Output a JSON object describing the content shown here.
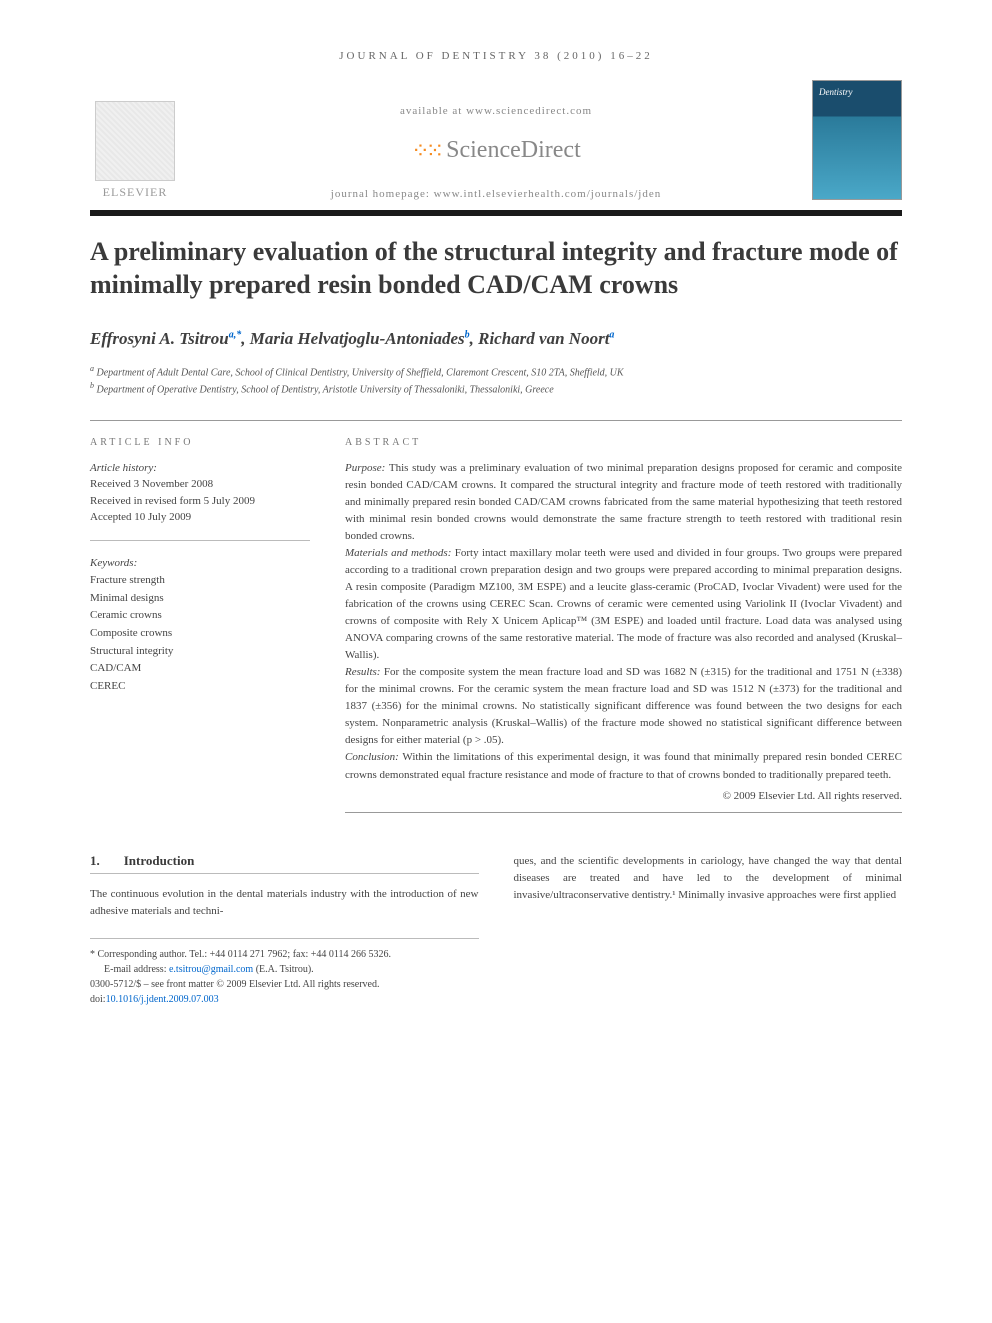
{
  "journal_header": "JOURNAL OF DENTISTRY 38 (2010) 16–22",
  "banner": {
    "available_at": "available at www.sciencedirect.com",
    "sciencedirect": "ScienceDirect",
    "homepage": "journal homepage: www.intl.elsevierhealth.com/journals/jden",
    "elsevier": "ELSEVIER",
    "cover_title": "Dentistry"
  },
  "title": "A preliminary evaluation of the structural integrity and fracture mode of minimally prepared resin bonded CAD/CAM crowns",
  "authors": {
    "a1": "Effrosyni A. Tsitrou",
    "a1_sup": "a,*",
    "a2": "Maria Helvatjoglu-Antoniades",
    "a2_sup": "b",
    "a3": "Richard van Noort",
    "a3_sup": "a"
  },
  "affiliations": {
    "a": "Department of Adult Dental Care, School of Clinical Dentistry, University of Sheffield, Claremont Crescent, S10 2TA, Sheffield, UK",
    "b": "Department of Operative Dentistry, School of Dentistry, Aristotle University of Thessaloniki, Thessaloniki, Greece"
  },
  "article_info": {
    "label": "ARTICLE INFO",
    "history_label": "Article history:",
    "received": "Received 3 November 2008",
    "revised": "Received in revised form 5 July 2009",
    "accepted": "Accepted 10 July 2009",
    "keywords_label": "Keywords:",
    "keywords": [
      "Fracture strength",
      "Minimal designs",
      "Ceramic crowns",
      "Composite crowns",
      "Structural integrity",
      "CAD/CAM",
      "CEREC"
    ]
  },
  "abstract": {
    "label": "ABSTRACT",
    "purpose_label": "Purpose:",
    "purpose": "This study was a preliminary evaluation of two minimal preparation designs proposed for ceramic and composite resin bonded CAD/CAM crowns. It compared the structural integrity and fracture mode of teeth restored with traditionally and minimally prepared resin bonded CAD/CAM crowns fabricated from the same material hypothesizing that teeth restored with minimal resin bonded crowns would demonstrate the same fracture strength to teeth restored with traditional resin bonded crowns.",
    "methods_label": "Materials and methods:",
    "methods": "Forty intact maxillary molar teeth were used and divided in four groups. Two groups were prepared according to a traditional crown preparation design and two groups were prepared according to minimal preparation designs. A resin composite (Paradigm MZ100, 3M ESPE) and a leucite glass-ceramic (ProCAD, Ivoclar Vivadent) were used for the fabrication of the crowns using CEREC Scan. Crowns of ceramic were cemented using Variolink II (Ivoclar Vivadent) and crowns of composite with Rely X Unicem Aplicap™ (3M ESPE) and loaded until fracture. Load data was analysed using ANOVA comparing crowns of the same restorative material. The mode of fracture was also recorded and analysed (Kruskal–Wallis).",
    "results_label": "Results:",
    "results": "For the composite system the mean fracture load and SD was 1682 N (±315) for the traditional and 1751 N (±338) for the minimal crowns. For the ceramic system the mean fracture load and SD was 1512 N (±373) for the traditional and 1837 (±356) for the minimal crowns. No statistically significant difference was found between the two designs for each system. Nonparametric analysis (Kruskal–Wallis) of the fracture mode showed no statistical significant difference between designs for either material (p > .05).",
    "conclusion_label": "Conclusion:",
    "conclusion": "Within the limitations of this experimental design, it was found that minimally prepared resin bonded CEREC crowns demonstrated equal fracture resistance and mode of fracture to that of crowns bonded to traditionally prepared teeth.",
    "copyright": "© 2009 Elsevier Ltd. All rights reserved."
  },
  "intro": {
    "num": "1.",
    "heading": "Introduction",
    "col1": "The continuous evolution in the dental materials industry with the introduction of new adhesive materials and techni-",
    "col2": "ques, and the scientific developments in cariology, have changed the way that dental diseases are treated and have led to the development of minimal invasive/ultraconservative dentistry.¹ Minimally invasive approaches were first applied"
  },
  "footer": {
    "corresponding": "* Corresponding author. Tel.: +44 0114 271 7962; fax: +44 0114 266 5326.",
    "email_label": "E-mail address:",
    "email": "e.tsitrou@gmail.com",
    "email_name": "(E.A. Tsitrou).",
    "issn": "0300-5712/$ – see front matter © 2009 Elsevier Ltd. All rights reserved.",
    "doi_label": "doi:",
    "doi": "10.1016/j.jdent.2009.07.003"
  },
  "colors": {
    "text": "#3a3a3a",
    "muted": "#888888",
    "link": "#0066cc",
    "orange": "#f68b1f",
    "rule": "#999999"
  }
}
